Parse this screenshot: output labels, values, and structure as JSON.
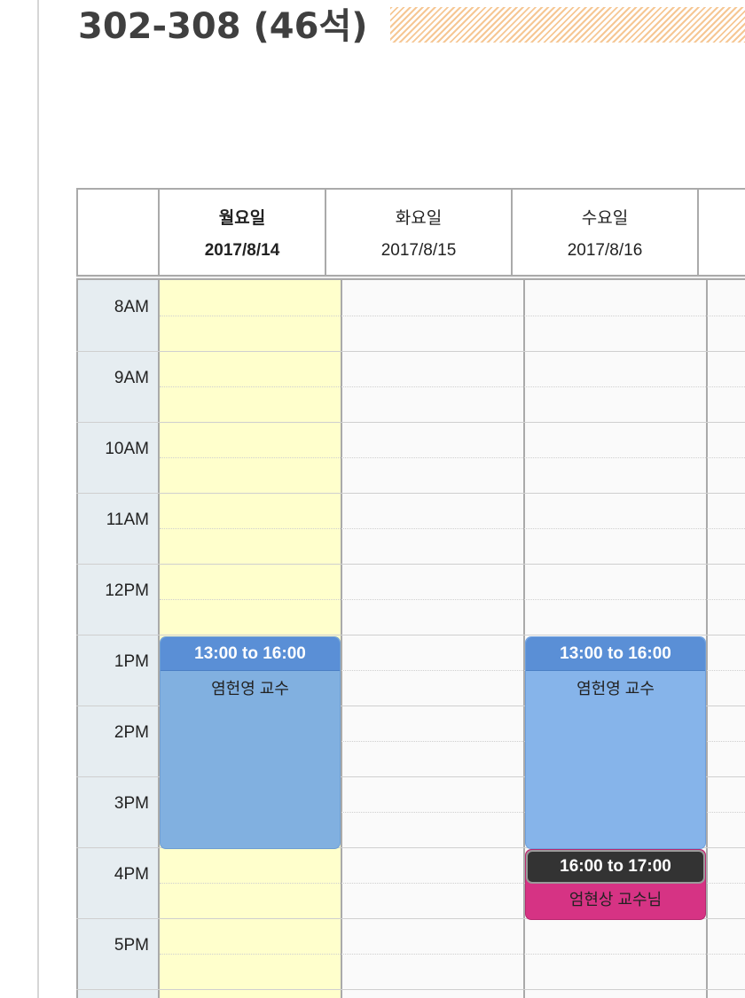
{
  "page": {
    "room_title": "302-308 (46석)"
  },
  "calendar": {
    "days": [
      {
        "name": "월요일",
        "date": "2017/8/14",
        "today": true
      },
      {
        "name": "화요일",
        "date": "2017/8/15",
        "today": false
      },
      {
        "name": "수요일",
        "date": "2017/8/16",
        "today": false
      }
    ],
    "time_slots": [
      "8AM",
      "9AM",
      "10AM",
      "11AM",
      "12PM",
      "1PM",
      "2PM",
      "3PM",
      "4PM",
      "5PM"
    ],
    "events": [
      {
        "day": "월요일",
        "time": "13:00 to 16:00",
        "title": "염헌영 교수"
      },
      {
        "day": "수요일",
        "time": "13:00 to 16:00",
        "title": "염헌영 교수"
      },
      {
        "day": "수요일",
        "time": "16:00 to 17:00",
        "title": "엄현상 교수님"
      }
    ]
  },
  "colors": {
    "today_column": "#ffffcc",
    "time_axis": "#e6edf1",
    "event_blue": "#81b0e0",
    "event_header_blue": "#5a8fd6",
    "event_pink": "#d63384",
    "event_header_dark": "#333333",
    "title_text": "#3f3f3f",
    "title_stripe": "#f6c794"
  }
}
